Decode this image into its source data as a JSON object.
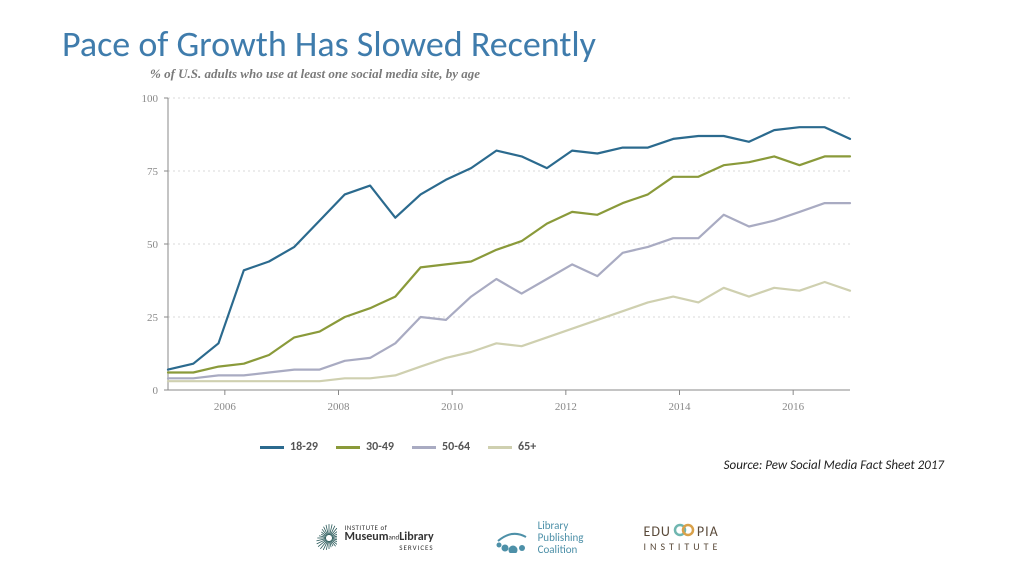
{
  "title": "Pace of Growth Has Slowed Recently",
  "subtitle": "% of U.S. adults who use at least one social media site, by age",
  "source": "Source: Pew Social Media Fact Sheet 2017",
  "chart": {
    "type": "line",
    "ylim": [
      0,
      100
    ],
    "ytick_step": 25,
    "yticks": [
      0,
      25,
      50,
      75,
      100
    ],
    "x_years_labeled": [
      2006,
      2008,
      2010,
      2012,
      2014,
      2016
    ],
    "x_range": [
      2005,
      2017
    ],
    "n_points": 28,
    "background_color": "#ffffff",
    "grid_color": "#d9d9d9",
    "grid_dash": "2,3",
    "axis_color": "#888888",
    "tick_font_color": "#888888",
    "tick_fontsize": 11,
    "line_width": 2.2,
    "series": [
      {
        "name": "18-29",
        "color": "#2b6a8e",
        "values": [
          7,
          9,
          16,
          41,
          44,
          49,
          58,
          67,
          70,
          59,
          67,
          72,
          76,
          82,
          80,
          76,
          82,
          81,
          83,
          83,
          86,
          87,
          87,
          85,
          89,
          90,
          90,
          86
        ]
      },
      {
        "name": "30-49",
        "color": "#8a9a3a",
        "values": [
          6,
          6,
          8,
          9,
          12,
          18,
          20,
          25,
          28,
          32,
          42,
          43,
          44,
          48,
          51,
          57,
          61,
          60,
          64,
          67,
          73,
          73,
          77,
          78,
          80,
          77,
          80,
          80
        ]
      },
      {
        "name": "50-64",
        "color": "#a9abc2",
        "values": [
          4,
          4,
          5,
          5,
          6,
          7,
          7,
          10,
          11,
          16,
          25,
          24,
          32,
          38,
          33,
          38,
          43,
          39,
          47,
          49,
          52,
          52,
          60,
          56,
          58,
          61,
          64,
          64
        ]
      },
      {
        "name": "65+",
        "color": "#cfd0b0",
        "values": [
          3,
          3,
          3,
          3,
          3,
          3,
          3,
          4,
          4,
          5,
          8,
          11,
          13,
          16,
          15,
          18,
          21,
          24,
          27,
          30,
          32,
          30,
          35,
          32,
          35,
          34,
          37,
          34
        ]
      }
    ]
  },
  "legend": {
    "items": [
      {
        "label": "18-29",
        "color": "#2b6a8e"
      },
      {
        "label": "30-49",
        "color": "#8a9a3a"
      },
      {
        "label": "50-64",
        "color": "#a9abc2"
      },
      {
        "label": "65+",
        "color": "#cfd0b0"
      }
    ],
    "fontsize": 12,
    "font_weight": "bold"
  },
  "logos": {
    "imls": {
      "line1": "INSTITUTE of",
      "line2a": "Museum",
      "line2and": "and",
      "line2b": "Library",
      "line3": "SERVICES",
      "color": "#2a5a5a"
    },
    "lpc": {
      "line1": "Library",
      "line2": "Publishing",
      "line3": "Coalition",
      "color": "#4d90a8"
    },
    "edu": {
      "line1": "EDUCOPIA",
      "line2": "INSTITUTE",
      "color": "#5a4a3a",
      "accent1": "#6fb6b0",
      "accent2": "#d9a14a"
    }
  }
}
